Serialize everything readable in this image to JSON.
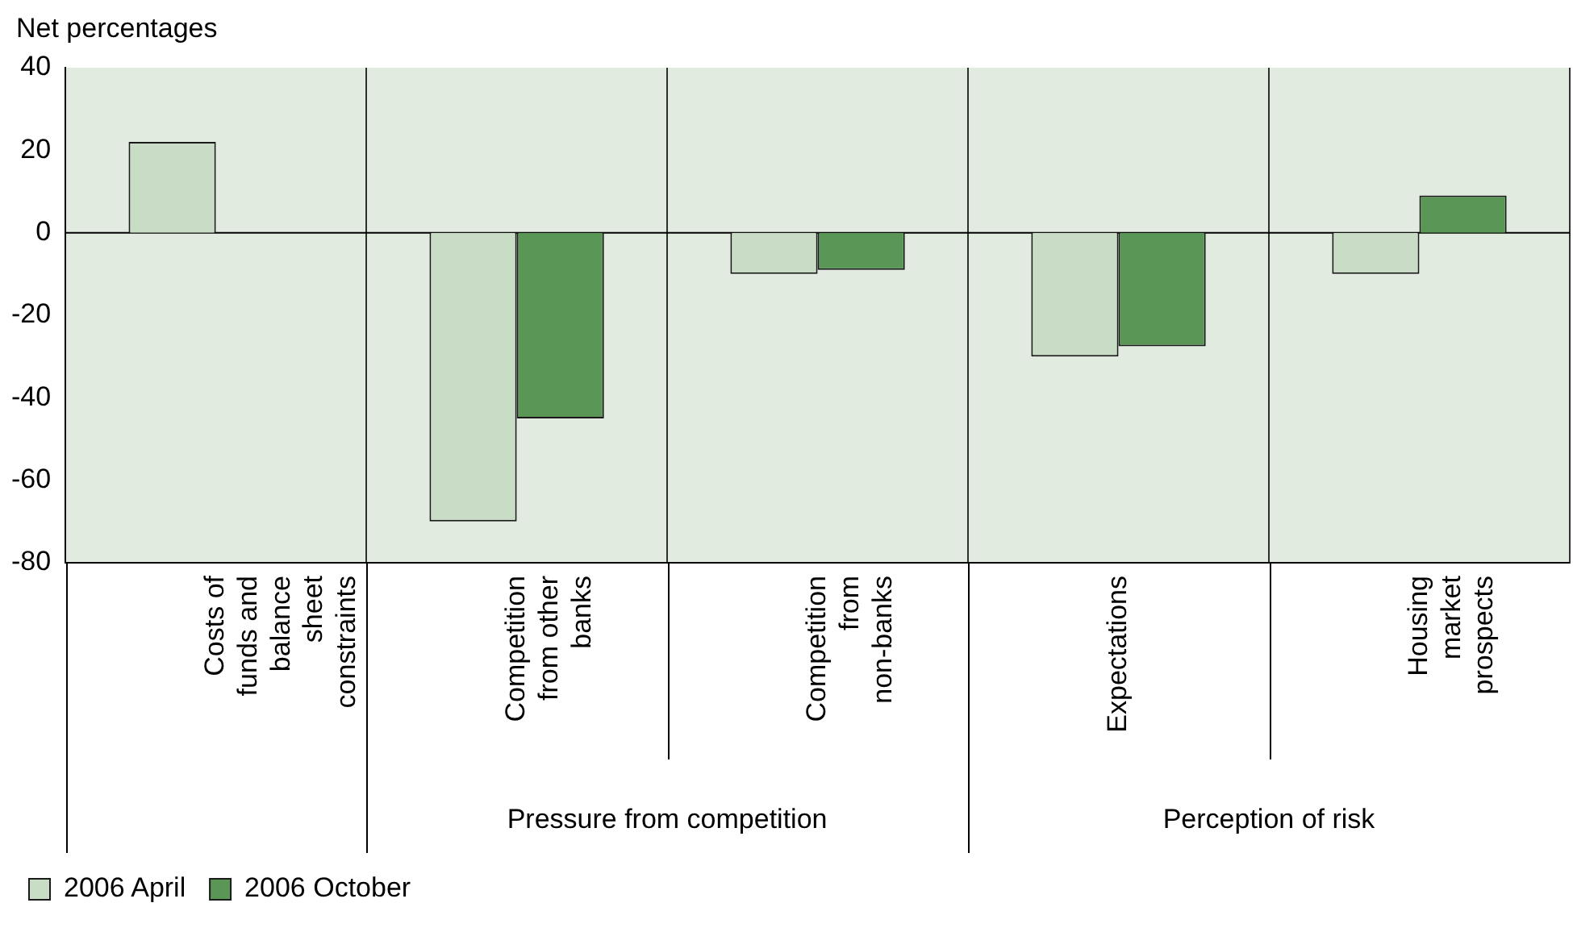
{
  "chart_data": {
    "type": "bar",
    "ylabel": "Net percentages",
    "categories": [
      "Costs of funds and balance sheet constraints",
      "Competition from other banks",
      "Competition from non-banks",
      "Expectations",
      "Housing market prospects"
    ],
    "series": [
      {
        "name": "2006 April",
        "color": "#c9dcc5",
        "values": [
          22,
          -70,
          -10,
          -30,
          -10
        ]
      },
      {
        "name": "2006 October",
        "color": "#5a9656",
        "values": [
          null,
          -45,
          -9,
          -27.5,
          9
        ]
      }
    ],
    "ref_lines": [
      {
        "axis": "y",
        "value": 0,
        "color": "#000000"
      }
    ],
    "ylim": [
      -80,
      40
    ],
    "yticks": [
      -80,
      -60,
      -40,
      -20,
      0,
      20,
      40
    ],
    "grid": "x",
    "legend": "bottom left",
    "annotations": [
      "Pressure from competition",
      "Perception of risk"
    ]
  }
}
